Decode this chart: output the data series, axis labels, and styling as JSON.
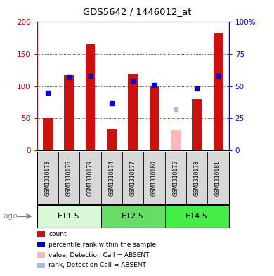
{
  "title": "GDS5642 / 1446012_at",
  "samples": [
    "GSM1310173",
    "GSM1310176",
    "GSM1310179",
    "GSM1310174",
    "GSM1310177",
    "GSM1310180",
    "GSM1310175",
    "GSM1310178",
    "GSM1310181"
  ],
  "age_groups": [
    {
      "label": "E11.5",
      "start": 0,
      "end": 3
    },
    {
      "label": "E12.5",
      "start": 3,
      "end": 6
    },
    {
      "label": "E14.5",
      "start": 6,
      "end": 9
    }
  ],
  "age_colors": [
    "#d8f8d8",
    "#66dd66",
    "#44ee44"
  ],
  "count_values": [
    50,
    117,
    165,
    33,
    120,
    100,
    null,
    80,
    183
  ],
  "rank_values": [
    45,
    57,
    58,
    37,
    54,
    51,
    null,
    48,
    58
  ],
  "absent_count": [
    null,
    null,
    null,
    null,
    null,
    null,
    32,
    null,
    null
  ],
  "absent_rank": [
    null,
    null,
    null,
    null,
    null,
    null,
    32,
    null,
    null
  ],
  "ylim": [
    0,
    200
  ],
  "y2lim": [
    0,
    100
  ],
  "yticks": [
    0,
    50,
    100,
    150,
    200
  ],
  "y2ticks": [
    0,
    25,
    50,
    75,
    100
  ],
  "y2ticklabels": [
    "0",
    "25",
    "50",
    "75",
    "100%"
  ],
  "bar_color": "#cc1111",
  "absent_bar_color": "#ffb8b8",
  "rank_color": "#0000cc",
  "absent_rank_color": "#b0b8e8",
  "left_label_color": "#cc0000",
  "right_label_color": "#0000cc",
  "legend_items": [
    {
      "label": "count",
      "color": "#cc1111"
    },
    {
      "label": "percentile rank within the sample",
      "color": "#0000cc"
    },
    {
      "label": "value, Detection Call = ABSENT",
      "color": "#ffb8b8"
    },
    {
      "label": "rank, Detection Call = ABSENT",
      "color": "#b0b8e8"
    }
  ]
}
